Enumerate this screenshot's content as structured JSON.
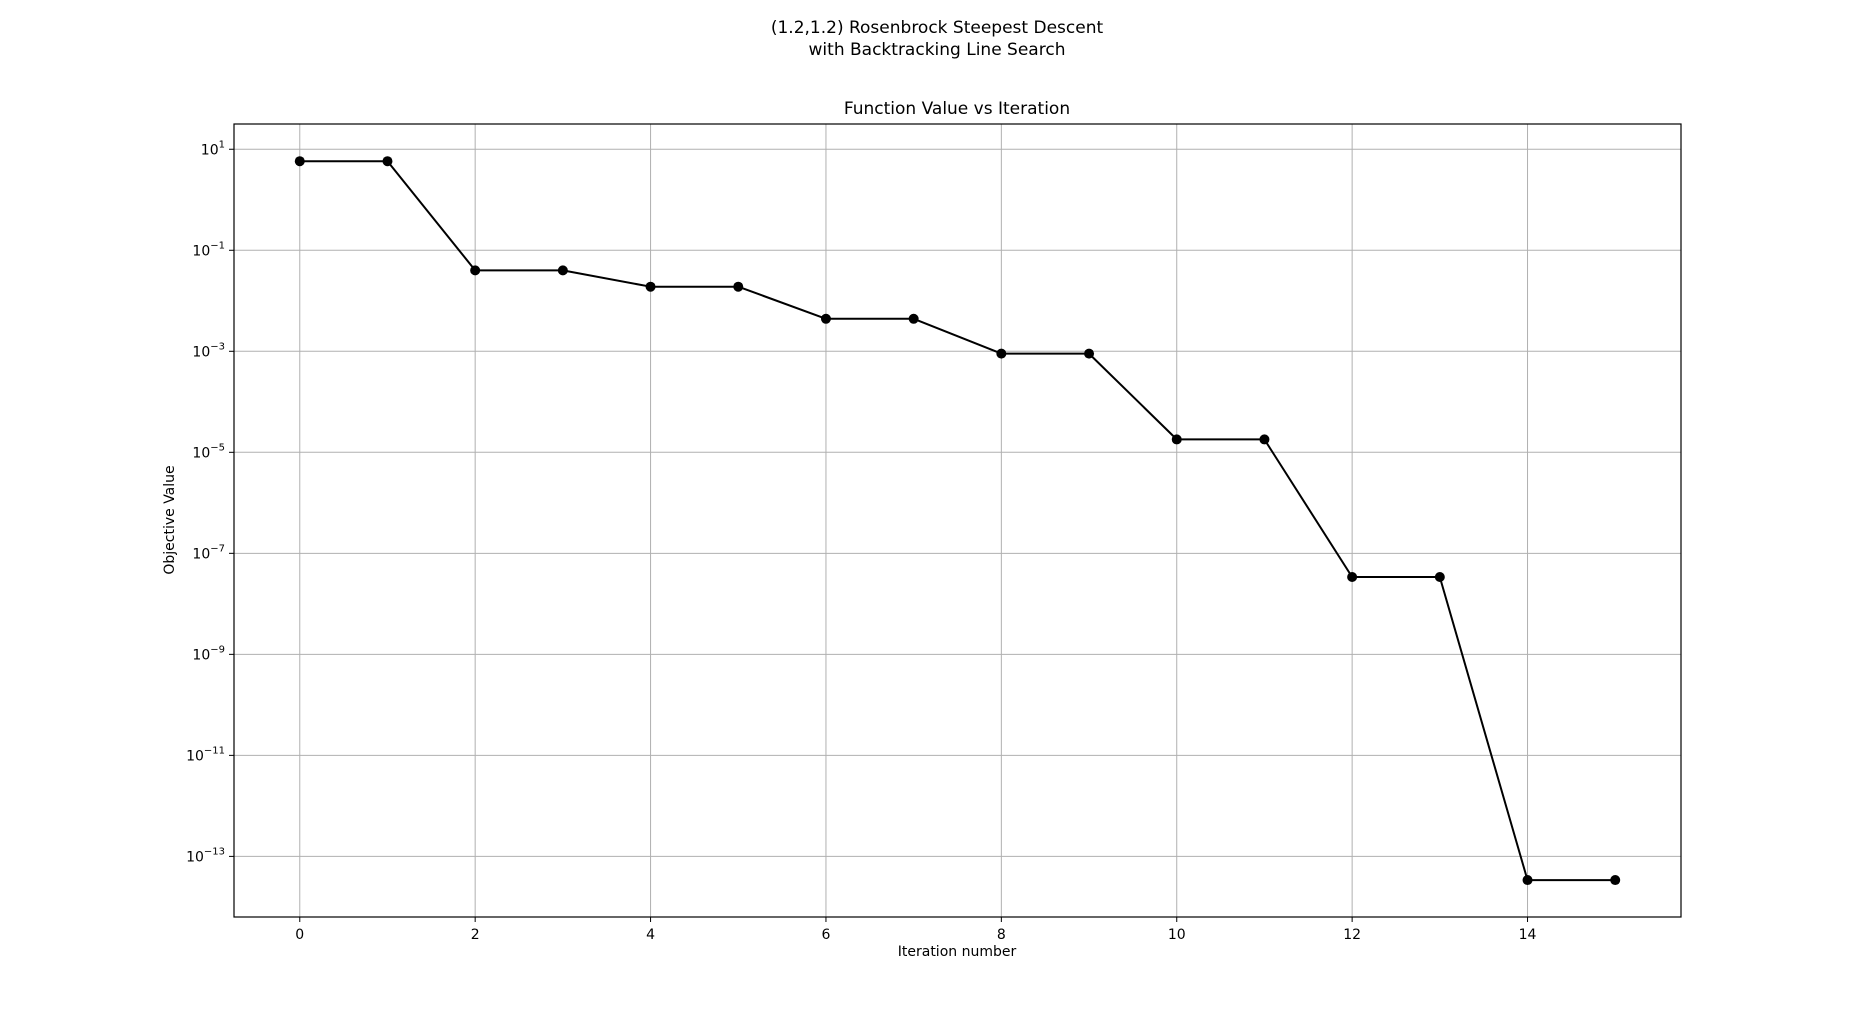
{
  "figure": {
    "suptitle_line1": "(1.2,1.2) Rosenbrock Steepest Descent",
    "suptitle_line2": "with Backtracking Line Search"
  },
  "chart_data": {
    "type": "line",
    "title": "Function Value vs Iteration",
    "xlabel": "Iteration number",
    "ylabel": "Objective Value",
    "yscale": "log",
    "xlim": [
      -0.75,
      15.75
    ],
    "ylim_log10": [
      -14.2,
      1.5
    ],
    "grid": true,
    "line_color": "#000000",
    "marker": "circle",
    "x_ticks": [
      0,
      2,
      4,
      6,
      8,
      10,
      12,
      14
    ],
    "y_ticks": [
      {
        "base": "10",
        "exp": "1",
        "value": 10
      },
      {
        "base": "10",
        "exp": "−1",
        "value": 0.1
      },
      {
        "base": "10",
        "exp": "−3",
        "value": 0.001
      },
      {
        "base": "10",
        "exp": "−5",
        "value": 1e-05
      },
      {
        "base": "10",
        "exp": "−7",
        "value": 1e-07
      },
      {
        "base": "10",
        "exp": "−9",
        "value": 1e-09
      },
      {
        "base": "10",
        "exp": "−11",
        "value": 1e-11
      },
      {
        "base": "10",
        "exp": "−13",
        "value": 1e-13
      }
    ],
    "x": [
      0,
      1,
      2,
      3,
      4,
      5,
      6,
      7,
      8,
      9,
      10,
      11,
      12,
      13,
      14,
      15
    ],
    "values": [
      5.8,
      5.8,
      0.04,
      0.04,
      0.019,
      0.019,
      0.0044,
      0.0044,
      0.0009,
      0.0009,
      1.8e-05,
      1.8e-05,
      3.4e-08,
      3.4e-08,
      3.4e-14,
      3.4e-14
    ]
  }
}
